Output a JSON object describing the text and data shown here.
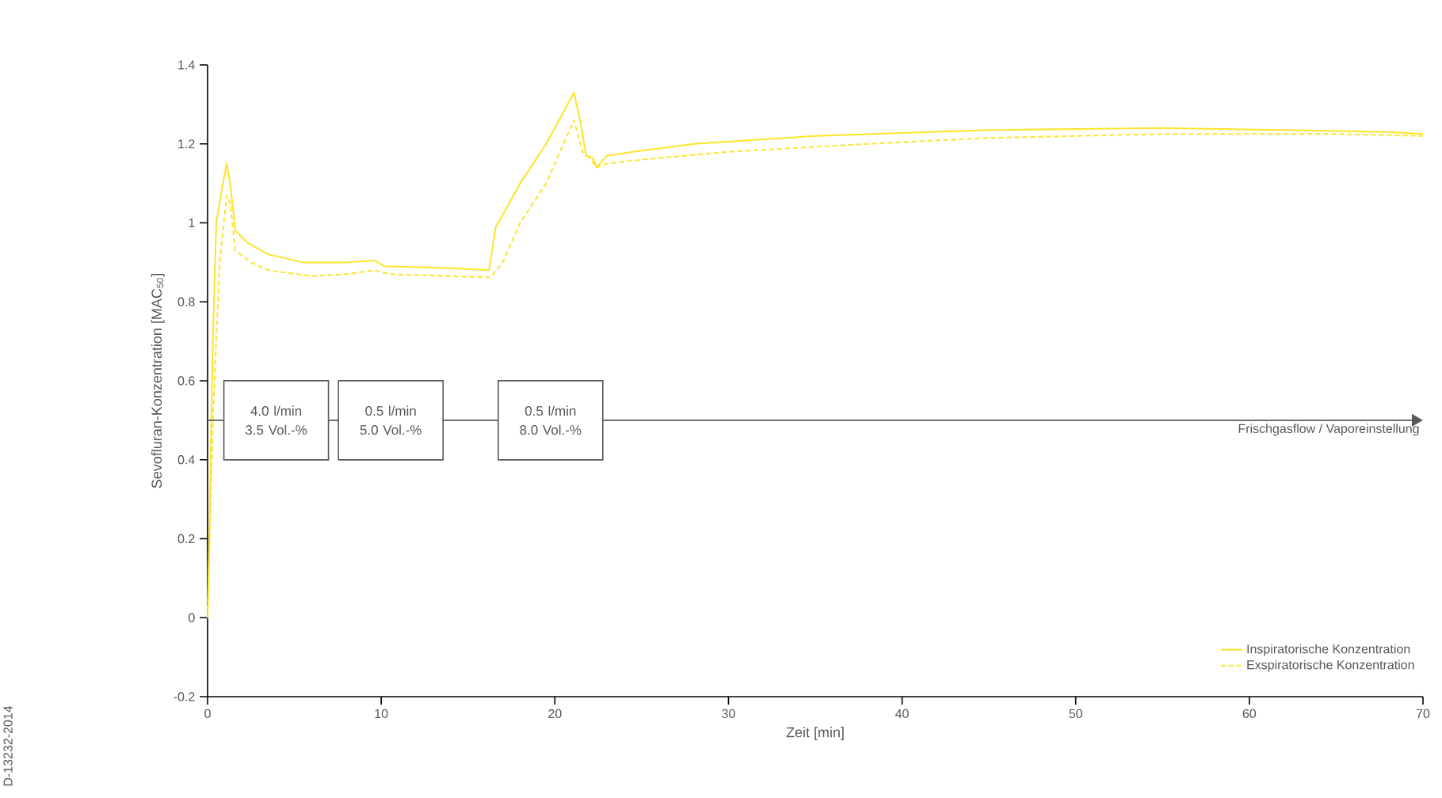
{
  "chart_data": {
    "type": "line",
    "xlabel": "Zeit [min]",
    "ylabel": "Sevofluran-Konzentration [MAC$_{50}$]",
    "xlim": [
      0,
      70
    ],
    "xticks": [
      0,
      10,
      20,
      30,
      40,
      50,
      60,
      70
    ],
    "ylim": [
      -0.2,
      1.4
    ],
    "yticks": [
      -0.2,
      0,
      0.2,
      0.4,
      0.6,
      0.8,
      1,
      1.2,
      1.4
    ],
    "grid": false,
    "legend": "bottom right",
    "marker": "none",
    "series": [
      {
        "name": "Inspiratorische Konzentration",
        "color": "#fde428",
        "line_style": "solid",
        "x": [
          0,
          0.1,
          0.3,
          0.5,
          0.8,
          1.1,
          1.3,
          1.6,
          2.3,
          3.5,
          5.5,
          8,
          9.6,
          10.2,
          14,
          16.2,
          16.6,
          17,
          18,
          19.5,
          21.1,
          21.5,
          21.8,
          22.2,
          22.4,
          23,
          24.5,
          28,
          35,
          45,
          55,
          62,
          68,
          70
        ],
        "values": [
          0,
          0.2,
          0.7,
          1.0,
          1.08,
          1.15,
          1.1,
          0.98,
          0.95,
          0.92,
          0.9,
          0.9,
          0.905,
          0.89,
          0.885,
          0.88,
          0.99,
          1.02,
          1.1,
          1.2,
          1.33,
          1.25,
          1.17,
          1.165,
          1.14,
          1.17,
          1.18,
          1.2,
          1.22,
          1.235,
          1.24,
          1.235,
          1.23,
          1.225
        ]
      },
      {
        "name": "Exspiratorische Konzentration",
        "color": "#fde428",
        "line_style": "dashed",
        "x": [
          0,
          0.3,
          0.7,
          1.1,
          1.3,
          1.6,
          2.5,
          3.5,
          6,
          8,
          9.6,
          10.5,
          14,
          16.3,
          17,
          18,
          19.5,
          21.1,
          21.6,
          22,
          22.4,
          23,
          25,
          30,
          38,
          45,
          55,
          65,
          70
        ],
        "values": [
          0,
          0.5,
          0.9,
          1.07,
          1.05,
          0.93,
          0.9,
          0.88,
          0.865,
          0.87,
          0.88,
          0.87,
          0.865,
          0.862,
          0.9,
          1.0,
          1.1,
          1.26,
          1.18,
          1.165,
          1.14,
          1.15,
          1.16,
          1.18,
          1.2,
          1.215,
          1.225,
          1.225,
          1.22
        ]
      }
    ],
    "ref_lines": [
      {
        "axis": "y",
        "value": 0.5,
        "label": "Frischgasflow / Vaporeinstellung",
        "color": "#58585a"
      }
    ],
    "annotations": [
      {
        "text": "4.0 l/min 3.5 Vol.-%",
        "x": 3.95,
        "y": 0.5
      },
      {
        "text": "0.5 l/min 5.0 Vol.-%",
        "x": 10.55,
        "y": 0.5
      },
      {
        "text": "0.5 l/min 8.0 Vol.-%",
        "x": 19.75,
        "y": 0.5
      },
      "D-13232-2014"
    ]
  }
}
